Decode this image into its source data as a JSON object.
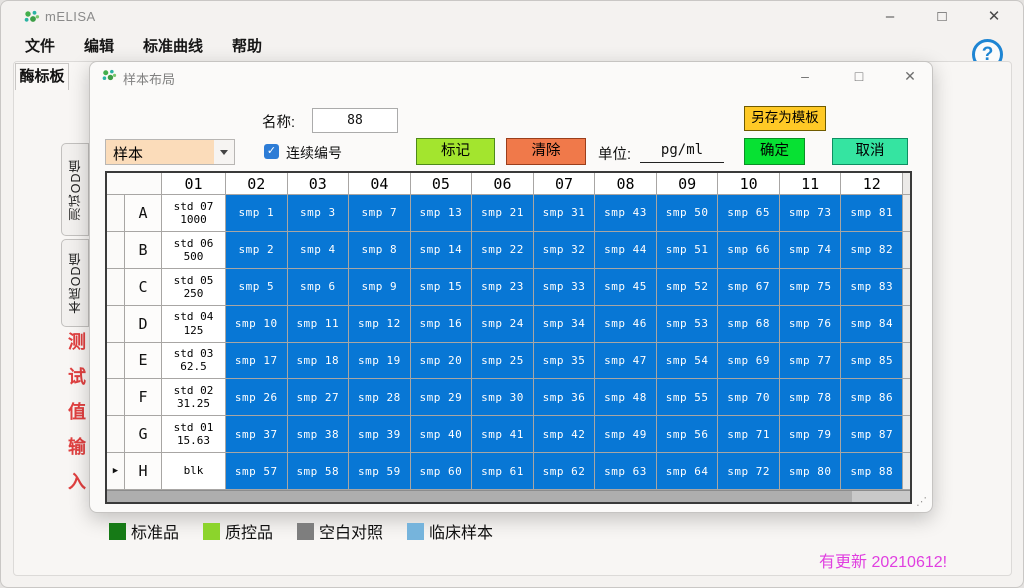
{
  "window": {
    "title": "mELISA",
    "menu": [
      "文件",
      "编辑",
      "标准曲线",
      "帮助"
    ],
    "plate_tab": "酶标板",
    "side_tabs": [
      "测试OD值",
      "本底OD值"
    ],
    "side_note": "测试值输入",
    "help_glyph": "?",
    "legend": [
      {
        "label": "标准品",
        "color": "#167A16"
      },
      {
        "label": "质控品",
        "color": "#8CD42C"
      },
      {
        "label": "空白对照",
        "color": "#7E7E7E"
      },
      {
        "label": "临床样本",
        "color": "#76B4DC"
      }
    ],
    "update_notice": "有更新 20210612!"
  },
  "window_buttons": {
    "minimize": "–",
    "maximize": "□",
    "close": "✕"
  },
  "dialog": {
    "title": "样本布局",
    "name_label": "名称:",
    "name_value": "88",
    "sample_type_value": "样本",
    "continuous_numbering_label": "连续编号",
    "continuous_numbering_checked": true,
    "checkmark_glyph": "✓",
    "mark_button": "标记",
    "clear_button": "清除",
    "unit_label": "单位:",
    "unit_value": "pg/ml",
    "save_as_template_button": "另存为模板",
    "ok_button": "确定",
    "cancel_button": "取消",
    "grid": {
      "selected_indicator": "▶",
      "column_headers": [
        "01",
        "02",
        "03",
        "04",
        "05",
        "06",
        "07",
        "08",
        "09",
        "10",
        "11",
        "12"
      ],
      "rows": [
        {
          "letter": "A",
          "std": "std 07",
          "conc": "1000",
          "samples": [
            "smp 1",
            "smp 3",
            "smp 7",
            "smp 13",
            "smp 21",
            "smp 31",
            "smp 43",
            "smp 50",
            "smp 65",
            "smp 73",
            "smp 81"
          ]
        },
        {
          "letter": "B",
          "std": "std 06",
          "conc": "500",
          "samples": [
            "smp 2",
            "smp 4",
            "smp 8",
            "smp 14",
            "smp 22",
            "smp 32",
            "smp 44",
            "smp 51",
            "smp 66",
            "smp 74",
            "smp 82"
          ]
        },
        {
          "letter": "C",
          "std": "std 05",
          "conc": "250",
          "samples": [
            "smp 5",
            "smp 6",
            "smp 9",
            "smp 15",
            "smp 23",
            "smp 33",
            "smp 45",
            "smp 52",
            "smp 67",
            "smp 75",
            "smp 83"
          ]
        },
        {
          "letter": "D",
          "std": "std 04",
          "conc": "125",
          "samples": [
            "smp 10",
            "smp 11",
            "smp 12",
            "smp 16",
            "smp 24",
            "smp 34",
            "smp 46",
            "smp 53",
            "smp 68",
            "smp 76",
            "smp 84"
          ]
        },
        {
          "letter": "E",
          "std": "std 03",
          "conc": "62.5",
          "samples": [
            "smp 17",
            "smp 18",
            "smp 19",
            "smp 20",
            "smp 25",
            "smp 35",
            "smp 47",
            "smp 54",
            "smp 69",
            "smp 77",
            "smp 85"
          ]
        },
        {
          "letter": "F",
          "std": "std 02",
          "conc": "31.25",
          "samples": [
            "smp 26",
            "smp 27",
            "smp 28",
            "smp 29",
            "smp 30",
            "smp 36",
            "smp 48",
            "smp 55",
            "smp 70",
            "smp 78",
            "smp 86"
          ]
        },
        {
          "letter": "G",
          "std": "std 01",
          "conc": "15.63",
          "samples": [
            "smp 37",
            "smp 38",
            "smp 39",
            "smp 40",
            "smp 41",
            "smp 42",
            "smp 49",
            "smp 56",
            "smp 71",
            "smp 79",
            "smp 87"
          ]
        },
        {
          "letter": "H",
          "std": "blk",
          "conc": "",
          "selected": true,
          "samples": [
            "smp 57",
            "smp 58",
            "smp 59",
            "smp 60",
            "smp 61",
            "smp 62",
            "smp 63",
            "smp 64",
            "smp 72",
            "smp 80",
            "smp 88"
          ]
        }
      ]
    }
  },
  "colors": {
    "sample_cell": "#0877D5",
    "mark_button": "#A3E52E",
    "clear_button": "#F0794A",
    "ok_button": "#07E133",
    "cancel_button": "#35E4A1",
    "save_template_button": "#FFC926",
    "dropdown_field": "#FBDCBA",
    "update_notice_text": "#E03FE0"
  }
}
